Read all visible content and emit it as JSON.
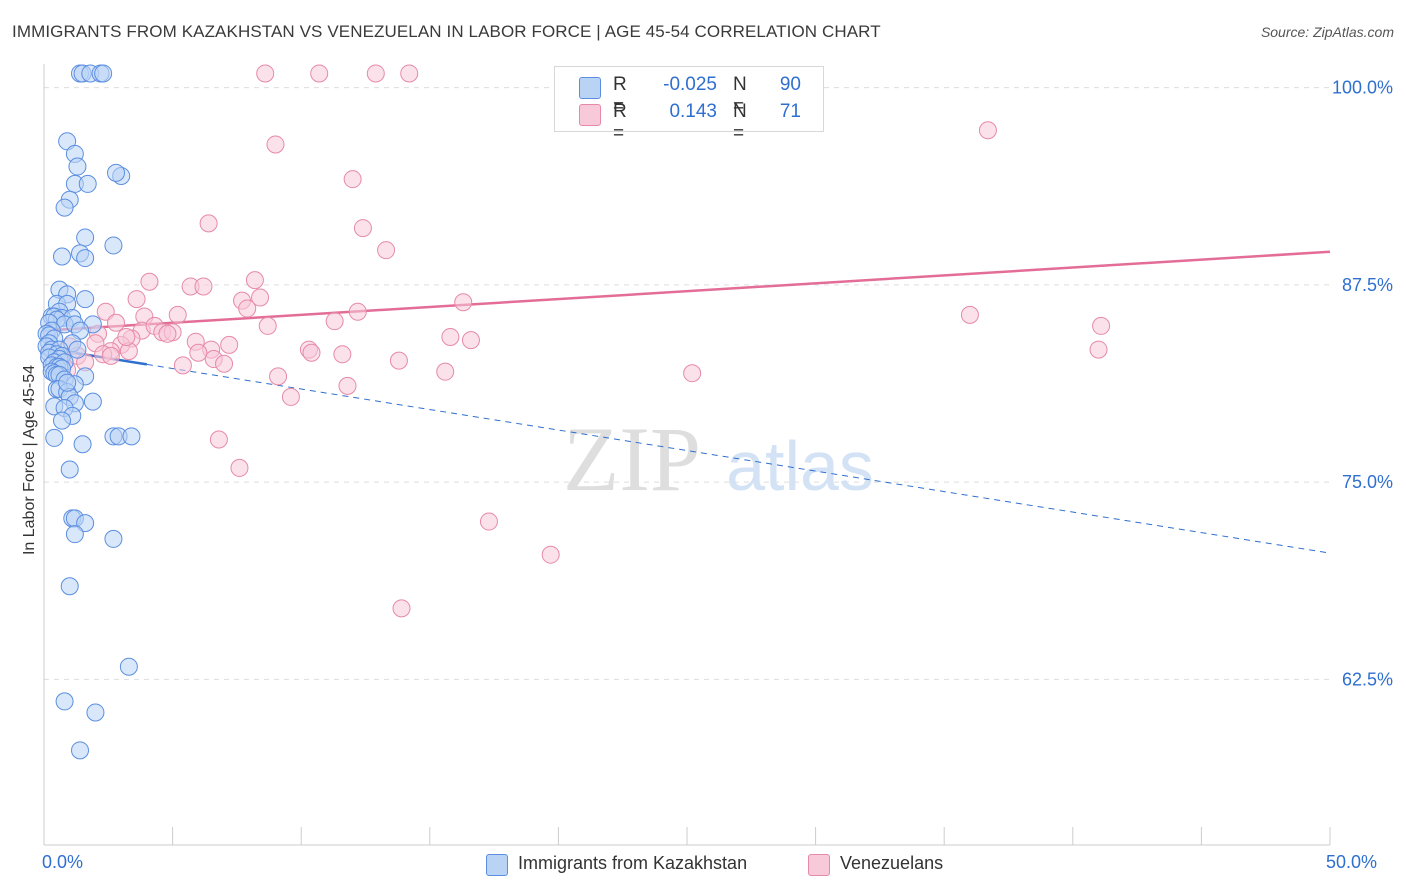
{
  "header": {
    "title": "IMMIGRANTS FROM KAZAKHSTAN VS VENEZUELAN IN LABOR FORCE | AGE 45-54 CORRELATION CHART",
    "source": "Source: ZipAtlas.com"
  },
  "watermark": {
    "zip": "ZIP",
    "atlas": "atlas"
  },
  "legend_top": {
    "rows": [
      {
        "r_label": "R =",
        "r_value": "-0.025",
        "n_label": "N =",
        "n_value": "90"
      },
      {
        "r_label": "R =",
        "r_value": "0.143",
        "n_label": "N =",
        "n_value": "71"
      }
    ]
  },
  "legend_bottom": {
    "items": [
      {
        "label": "Immigrants from Kazakhstan"
      },
      {
        "label": "Venezuelans"
      }
    ]
  },
  "colors": {
    "blue_fill": "#b9d3f5",
    "blue_stroke": "#5b8ee0",
    "blue_line": "#2f6fd0",
    "pink_fill": "#f8c9d8",
    "pink_stroke": "#e68aa8",
    "pink_line": "#e36d97",
    "grid": "#dddddd",
    "axis_text": "#2f6fd0"
  },
  "chart_data": {
    "type": "scatter",
    "title": "IMMIGRANTS FROM KAZAKHSTAN VS VENEZUELAN IN LABOR FORCE | AGE 45-54 CORRELATION CHART",
    "xlabel": "",
    "ylabel": "In Labor Force | Age 45-54",
    "xlim": [
      0,
      50
    ],
    "ylim": [
      52,
      101.5
    ],
    "x_tick_labels": [
      "0.0%",
      "50.0%"
    ],
    "y_ticks": [
      62.5,
      75.0,
      87.5,
      100.0
    ],
    "y_tick_labels": [
      "62.5%",
      "75.0%",
      "87.5%",
      "100.0%"
    ],
    "grid": true,
    "legend_placement": "bottom",
    "series": [
      {
        "name": "Immigrants from Kazakhstan",
        "r": -0.025,
        "n": 90,
        "trend": {
          "x": [
            0,
            50
          ],
          "y": [
            83.5,
            70.5
          ],
          "solid_until_x": 4.0
        },
        "points": [
          [
            1.4,
            100.9
          ],
          [
            1.5,
            100.9
          ],
          [
            1.8,
            100.9
          ],
          [
            2.2,
            100.9
          ],
          [
            2.3,
            100.9
          ],
          [
            0.9,
            96.6
          ],
          [
            1.2,
            95.8
          ],
          [
            3.0,
            94.4
          ],
          [
            1.2,
            93.9
          ],
          [
            1.7,
            93.9
          ],
          [
            1.0,
            92.9
          ],
          [
            0.8,
            92.4
          ],
          [
            1.6,
            90.5
          ],
          [
            2.7,
            90.0
          ],
          [
            1.4,
            89.5
          ],
          [
            0.7,
            89.3
          ],
          [
            1.6,
            89.2
          ],
          [
            0.6,
            87.2
          ],
          [
            0.9,
            86.9
          ],
          [
            1.6,
            86.6
          ],
          [
            0.5,
            86.3
          ],
          [
            0.9,
            86.3
          ],
          [
            0.6,
            85.8
          ],
          [
            0.3,
            85.5
          ],
          [
            0.4,
            85.5
          ],
          [
            0.7,
            85.4
          ],
          [
            1.1,
            85.4
          ],
          [
            0.5,
            85.3
          ],
          [
            0.2,
            85.1
          ],
          [
            0.8,
            85.0
          ],
          [
            1.2,
            85.0
          ],
          [
            1.9,
            85.0
          ],
          [
            0.3,
            84.6
          ],
          [
            1.4,
            84.6
          ],
          [
            0.1,
            84.4
          ],
          [
            0.2,
            84.3
          ],
          [
            0.4,
            84.1
          ],
          [
            0.2,
            83.8
          ],
          [
            1.1,
            83.8
          ],
          [
            0.1,
            83.6
          ],
          [
            0.3,
            83.4
          ],
          [
            0.6,
            83.4
          ],
          [
            1.3,
            83.4
          ],
          [
            0.2,
            83.2
          ],
          [
            0.5,
            83.1
          ],
          [
            0.7,
            83.0
          ],
          [
            0.2,
            82.9
          ],
          [
            0.6,
            82.8
          ],
          [
            0.4,
            82.6
          ],
          [
            0.8,
            82.6
          ],
          [
            0.3,
            82.4
          ],
          [
            0.5,
            82.3
          ],
          [
            0.6,
            82.3
          ],
          [
            0.7,
            82.2
          ],
          [
            0.3,
            82.0
          ],
          [
            0.4,
            81.9
          ],
          [
            0.5,
            81.8
          ],
          [
            0.6,
            81.8
          ],
          [
            1.6,
            81.7
          ],
          [
            0.8,
            81.5
          ],
          [
            1.2,
            81.2
          ],
          [
            0.5,
            80.9
          ],
          [
            0.6,
            80.9
          ],
          [
            0.9,
            80.7
          ],
          [
            1.0,
            80.4
          ],
          [
            1.9,
            80.1
          ],
          [
            1.2,
            80.0
          ],
          [
            0.4,
            79.8
          ],
          [
            0.8,
            79.7
          ],
          [
            1.1,
            79.2
          ],
          [
            0.7,
            78.9
          ],
          [
            2.7,
            77.9
          ],
          [
            2.9,
            77.9
          ],
          [
            3.4,
            77.9
          ],
          [
            0.4,
            77.8
          ],
          [
            1.5,
            77.4
          ],
          [
            1.0,
            75.8
          ],
          [
            1.1,
            72.7
          ],
          [
            1.2,
            72.7
          ],
          [
            1.6,
            72.4
          ],
          [
            1.2,
            71.7
          ],
          [
            2.7,
            71.4
          ],
          [
            1.0,
            68.4
          ],
          [
            3.3,
            63.3
          ],
          [
            0.8,
            61.1
          ],
          [
            2.0,
            60.4
          ],
          [
            1.4,
            58.0
          ],
          [
            2.8,
            94.6
          ],
          [
            1.3,
            95.0
          ],
          [
            0.9,
            81.3
          ]
        ]
      },
      {
        "name": "Venezuelans",
        "r": 0.143,
        "n": 71,
        "trend": {
          "x": [
            0,
            50
          ],
          "y": [
            84.6,
            89.6
          ]
        },
        "points": [
          [
            8.6,
            100.9
          ],
          [
            10.7,
            100.9
          ],
          [
            12.9,
            100.9
          ],
          [
            14.2,
            100.9
          ],
          [
            36.7,
            97.3
          ],
          [
            9.0,
            96.4
          ],
          [
            12.0,
            94.2
          ],
          [
            6.4,
            91.4
          ],
          [
            12.4,
            91.1
          ],
          [
            13.3,
            89.7
          ],
          [
            4.1,
            87.7
          ],
          [
            8.2,
            87.8
          ],
          [
            5.7,
            87.4
          ],
          [
            6.2,
            87.4
          ],
          [
            3.6,
            86.6
          ],
          [
            7.7,
            86.5
          ],
          [
            8.4,
            86.7
          ],
          [
            16.3,
            86.4
          ],
          [
            2.4,
            85.8
          ],
          [
            3.9,
            85.5
          ],
          [
            5.2,
            85.6
          ],
          [
            7.9,
            86.0
          ],
          [
            2.8,
            85.1
          ],
          [
            11.3,
            85.2
          ],
          [
            36.0,
            85.6
          ],
          [
            41.1,
            84.9
          ],
          [
            3.8,
            84.6
          ],
          [
            4.3,
            84.9
          ],
          [
            4.6,
            84.5
          ],
          [
            5.0,
            84.5
          ],
          [
            8.7,
            84.9
          ],
          [
            2.1,
            84.4
          ],
          [
            3.4,
            84.1
          ],
          [
            15.8,
            84.2
          ],
          [
            16.6,
            84.0
          ],
          [
            1.0,
            83.6
          ],
          [
            2.0,
            83.8
          ],
          [
            3.0,
            83.7
          ],
          [
            5.9,
            83.9
          ],
          [
            7.2,
            83.7
          ],
          [
            10.3,
            83.4
          ],
          [
            6.5,
            83.4
          ],
          [
            2.6,
            83.3
          ],
          [
            3.3,
            83.3
          ],
          [
            10.4,
            83.2
          ],
          [
            11.6,
            83.1
          ],
          [
            1.3,
            83.0
          ],
          [
            2.3,
            83.1
          ],
          [
            41.0,
            83.4
          ],
          [
            6.6,
            82.8
          ],
          [
            13.8,
            82.7
          ],
          [
            5.4,
            82.4
          ],
          [
            7.0,
            82.5
          ],
          [
            15.6,
            82.0
          ],
          [
            25.2,
            81.9
          ],
          [
            9.1,
            81.7
          ],
          [
            11.8,
            81.1
          ],
          [
            9.6,
            80.4
          ],
          [
            0.9,
            82.1
          ],
          [
            6.8,
            77.7
          ],
          [
            7.6,
            75.9
          ],
          [
            17.3,
            72.5
          ],
          [
            19.7,
            70.4
          ],
          [
            13.9,
            67.0
          ],
          [
            1.6,
            82.6
          ],
          [
            2.6,
            83.0
          ],
          [
            4.8,
            84.4
          ],
          [
            0.6,
            82.4
          ],
          [
            12.2,
            85.8
          ],
          [
            6.0,
            83.2
          ],
          [
            3.2,
            84.2
          ]
        ]
      }
    ]
  }
}
